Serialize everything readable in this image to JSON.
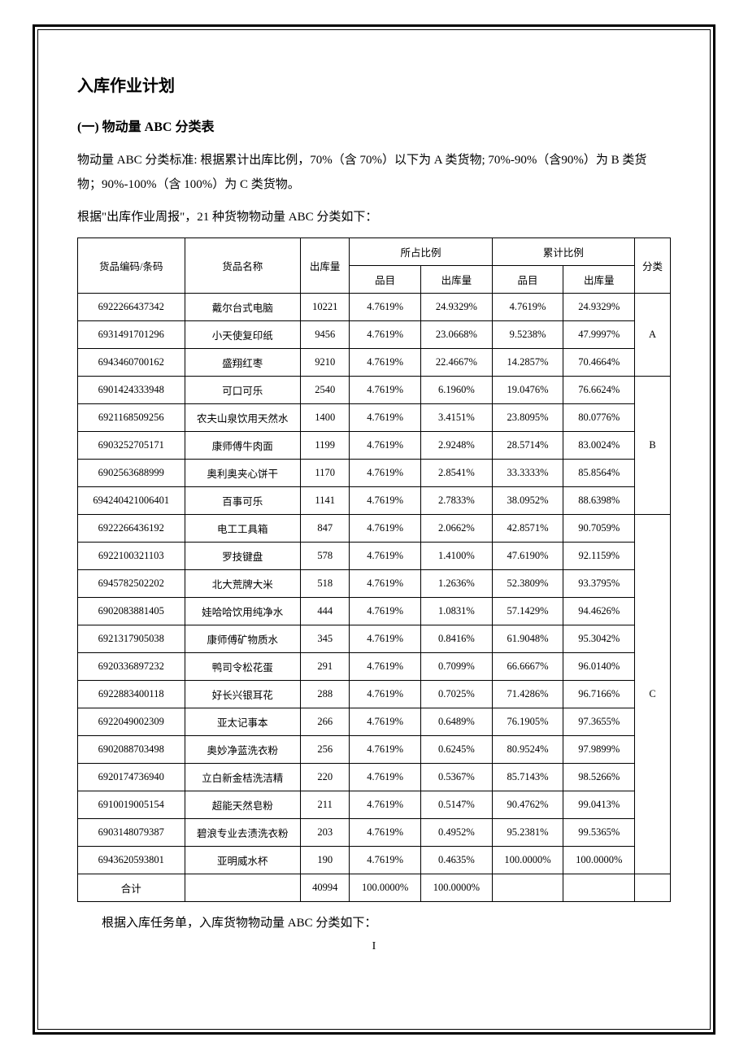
{
  "title": "入库作业计划",
  "subtitle": "(一) 物动量 ABC 分类表",
  "para1": "物动量 ABC 分类标准: 根据累计出库比例，70%（含 70%）以下为 A 类货物; 70%-90%（含90%）为 B 类货物；90%-100%（含 100%）为 C 类货物。",
  "para2": "根据\"出库作业周报\"，21 种货物物动量 ABC 分类如下：",
  "footnote": "根据入库任务单，入库货物物动量 ABC 分类如下：",
  "page_number": "I",
  "headers": {
    "code": "货品编码/条码",
    "name": "货品名称",
    "out": "出库量",
    "share": "所占比例",
    "cumulative": "累计比例",
    "item_pct": "品目",
    "out_pct": "出库量",
    "category": "分类"
  },
  "groups": [
    {
      "category": "A",
      "rows": [
        {
          "code": "6922266437342",
          "name": "戴尔台式电脑",
          "out": "10221",
          "item_pct": "4.7619%",
          "out_pct": "24.9329%",
          "cum_item": "4.7619%",
          "cum_out": "24.9329%"
        },
        {
          "code": "6931491701296",
          "name": "小天使复印纸",
          "out": "9456",
          "item_pct": "4.7619%",
          "out_pct": "23.0668%",
          "cum_item": "9.5238%",
          "cum_out": "47.9997%"
        },
        {
          "code": "6943460700162",
          "name": "盛翔红枣",
          "out": "9210",
          "item_pct": "4.7619%",
          "out_pct": "22.4667%",
          "cum_item": "14.2857%",
          "cum_out": "70.4664%"
        }
      ]
    },
    {
      "category": "B",
      "rows": [
        {
          "code": "6901424333948",
          "name": "可口可乐",
          "out": "2540",
          "item_pct": "4.7619%",
          "out_pct": "6.1960%",
          "cum_item": "19.0476%",
          "cum_out": "76.6624%"
        },
        {
          "code": "6921168509256",
          "name": "农夫山泉饮用天然水",
          "out": "1400",
          "item_pct": "4.7619%",
          "out_pct": "3.4151%",
          "cum_item": "23.8095%",
          "cum_out": "80.0776%"
        },
        {
          "code": "6903252705171",
          "name": "康师傅牛肉面",
          "out": "1199",
          "item_pct": "4.7619%",
          "out_pct": "2.9248%",
          "cum_item": "28.5714%",
          "cum_out": "83.0024%"
        },
        {
          "code": "6902563688999",
          "name": "奥利奥夹心饼干",
          "out": "1170",
          "item_pct": "4.7619%",
          "out_pct": "2.8541%",
          "cum_item": "33.3333%",
          "cum_out": "85.8564%"
        },
        {
          "code": "694240421006401",
          "name": "百事可乐",
          "out": "1141",
          "item_pct": "4.7619%",
          "out_pct": "2.7833%",
          "cum_item": "38.0952%",
          "cum_out": "88.6398%"
        }
      ]
    },
    {
      "category": "C",
      "rows": [
        {
          "code": "6922266436192",
          "name": "电工工具箱",
          "out": "847",
          "item_pct": "4.7619%",
          "out_pct": "2.0662%",
          "cum_item": "42.8571%",
          "cum_out": "90.7059%"
        },
        {
          "code": "6922100321103",
          "name": "罗技键盘",
          "out": "578",
          "item_pct": "4.7619%",
          "out_pct": "1.4100%",
          "cum_item": "47.6190%",
          "cum_out": "92.1159%"
        },
        {
          "code": "6945782502202",
          "name": "北大荒牌大米",
          "out": "518",
          "item_pct": "4.7619%",
          "out_pct": "1.2636%",
          "cum_item": "52.3809%",
          "cum_out": "93.3795%"
        },
        {
          "code": "6902083881405",
          "name": "娃哈哈饮用纯净水",
          "out": "444",
          "item_pct": "4.7619%",
          "out_pct": "1.0831%",
          "cum_item": "57.1429%",
          "cum_out": "94.4626%"
        },
        {
          "code": "6921317905038",
          "name": "康师傅矿物质水",
          "out": "345",
          "item_pct": "4.7619%",
          "out_pct": "0.8416%",
          "cum_item": "61.9048%",
          "cum_out": "95.3042%"
        },
        {
          "code": "6920336897232",
          "name": "鸭司令松花蛋",
          "out": "291",
          "item_pct": "4.7619%",
          "out_pct": "0.7099%",
          "cum_item": "66.6667%",
          "cum_out": "96.0140%"
        },
        {
          "code": "6922883400118",
          "name": "好长兴银耳花",
          "out": "288",
          "item_pct": "4.7619%",
          "out_pct": "0.7025%",
          "cum_item": "71.4286%",
          "cum_out": "96.7166%"
        },
        {
          "code": "6922049002309",
          "name": "亚太记事本",
          "out": "266",
          "item_pct": "4.7619%",
          "out_pct": "0.6489%",
          "cum_item": "76.1905%",
          "cum_out": "97.3655%"
        },
        {
          "code": "6902088703498",
          "name": "奥妙净蓝洗衣粉",
          "out": "256",
          "item_pct": "4.7619%",
          "out_pct": "0.6245%",
          "cum_item": "80.9524%",
          "cum_out": "97.9899%"
        },
        {
          "code": "6920174736940",
          "name": "立白新金桔洗洁精",
          "out": "220",
          "item_pct": "4.7619%",
          "out_pct": "0.5367%",
          "cum_item": "85.7143%",
          "cum_out": "98.5266%"
        },
        {
          "code": "6910019005154",
          "name": "超能天然皂粉",
          "out": "211",
          "item_pct": "4.7619%",
          "out_pct": "0.5147%",
          "cum_item": "90.4762%",
          "cum_out": "99.0413%"
        },
        {
          "code": "6903148079387",
          "name": "碧浪专业去渍洗衣粉",
          "out": "203",
          "item_pct": "4.7619%",
          "out_pct": "0.4952%",
          "cum_item": "95.2381%",
          "cum_out": "99.5365%"
        },
        {
          "code": "6943620593801",
          "name": "亚明威水杯",
          "out": "190",
          "item_pct": "4.7619%",
          "out_pct": "0.4635%",
          "cum_item": "100.0000%",
          "cum_out": "100.0000%"
        }
      ]
    }
  ],
  "total": {
    "label": "合计",
    "out": "40994",
    "item_pct": "100.0000%",
    "out_pct": "100.0000%"
  }
}
